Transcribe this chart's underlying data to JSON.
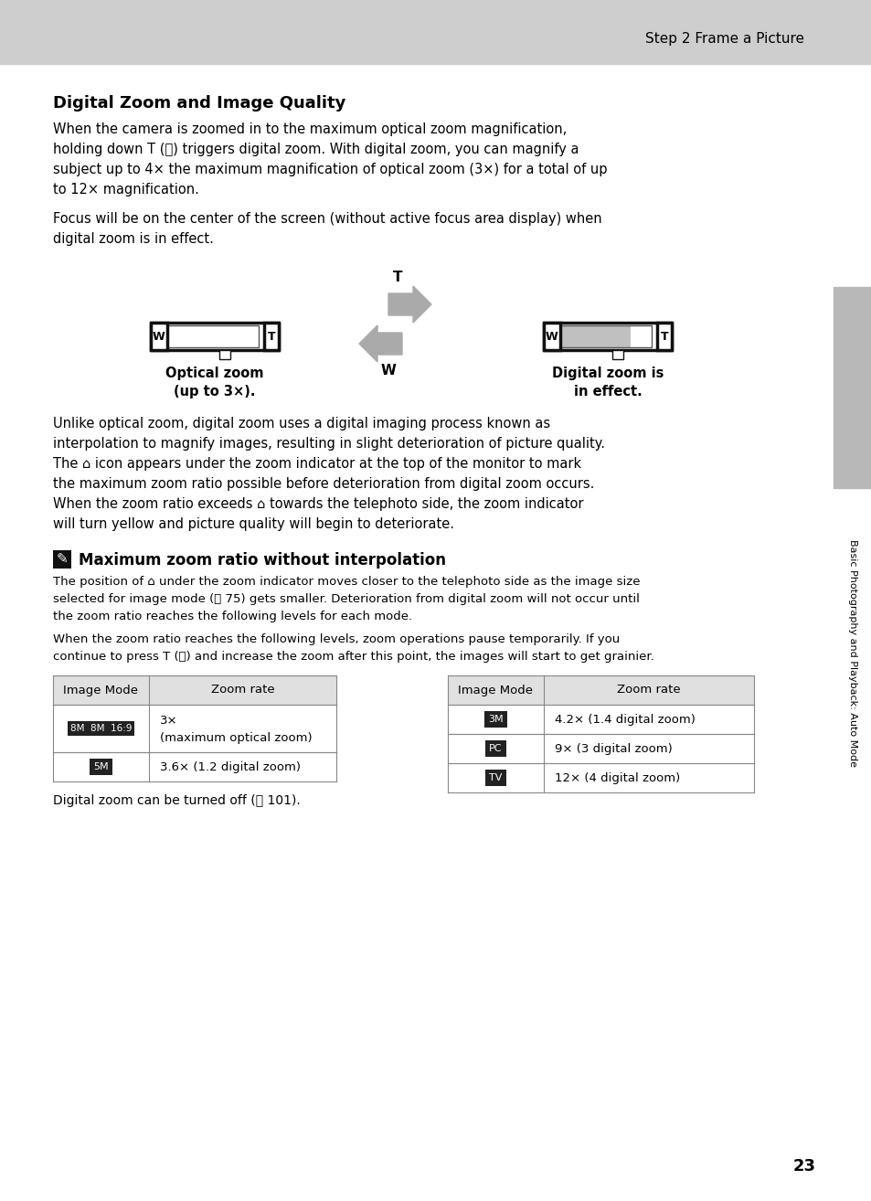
{
  "bg_color": "#ffffff",
  "header_bg": "#cecece",
  "header_text": "Step 2 Frame a Picture",
  "section_title": "Digital Zoom and Image Quality",
  "para1_lines": [
    "When the camera is zoomed in to the maximum optical zoom magnification,",
    "holding down T (Ⓠ) triggers digital zoom. With digital zoom, you can magnify a",
    "subject up to 4× the maximum magnification of optical zoom (3×) for a total of up",
    "to 12× magnification."
  ],
  "para2_lines": [
    "Focus will be on the center of the screen (without active focus area display) when",
    "digital zoom is in effect."
  ],
  "optical_label1": "Optical zoom",
  "optical_label2": "(up to 3×).",
  "digital_label1": "Digital zoom is",
  "digital_label2": "in effect.",
  "para3_lines": [
    "Unlike optical zoom, digital zoom uses a digital imaging process known as",
    "interpolation to magnify images, resulting in slight deterioration of picture quality.",
    "The ⌂ icon appears under the zoom indicator at the top of the monitor to mark",
    "the maximum zoom ratio possible before deterioration from digital zoom occurs.",
    "When the zoom ratio exceeds ⌂ towards the telephoto side, the zoom indicator",
    "will turn yellow and picture quality will begin to deteriorate."
  ],
  "note_title": "Maximum zoom ratio without interpolation",
  "note_para1_lines": [
    "The position of ⌂ under the zoom indicator moves closer to the telephoto side as the image size",
    "selected for image mode (Ⓢ 75) gets smaller. Deterioration from digital zoom will not occur until",
    "the zoom ratio reaches the following levels for each mode."
  ],
  "note_para2_lines": [
    "When the zoom ratio reaches the following levels, zoom operations pause temporarily. If you",
    "continue to press T (Ⓠ) and increase the zoom after this point, the images will start to get grainier."
  ],
  "table_left_rows": [
    [
      "Image Mode",
      "Zoom rate"
    ],
    [
      "8M  8M  16:9",
      "3×\n(maximum optical zoom)"
    ],
    [
      "5M",
      "3.6× (1.2 digital zoom)"
    ]
  ],
  "table_right_rows": [
    [
      "Image Mode",
      "Zoom rate"
    ],
    [
      "3M",
      "4.2× (1.4 digital zoom)"
    ],
    [
      "PC",
      "9× (3 digital zoom)"
    ],
    [
      "TV",
      "12× (4 digital zoom)"
    ]
  ],
  "footer_note": "Digital zoom can be turned off (Ⓢ 101).",
  "page_num": "23",
  "sidebar_text": "Basic Photography and Playback: Auto Mode",
  "line_color": "#888888",
  "header_line_color": "#aaaaaa",
  "table_header_bg": "#e0e0e0",
  "sidebar_bg": "#b8b8b8"
}
